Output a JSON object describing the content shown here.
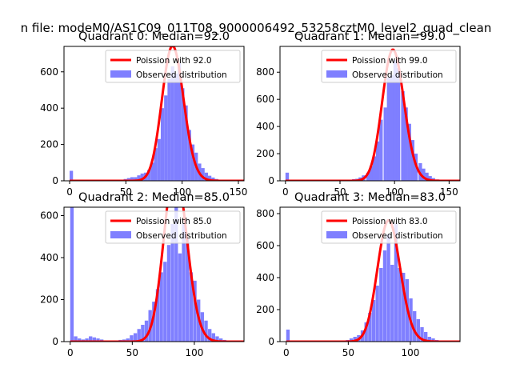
{
  "figure": {
    "suptitle": "n file: modeM0/AS1C09_011T08_9000006492_53258cztM0_level2_quad_clean"
  },
  "colors": {
    "hist": "#7f7fff",
    "curve": "#ff0000"
  },
  "chart_data": [
    {
      "type": "histogram",
      "title": "Quadrant 0: Median=92.0",
      "median": 92.0,
      "bin_width": 3,
      "legend": {
        "placement": "top-right",
        "entries": [
          "Poission with 92.0",
          "Observed distribution"
        ]
      },
      "xlim": [
        -5,
        155
      ],
      "ylim": [
        0,
        740
      ],
      "xticks": [
        0,
        50,
        100,
        150
      ],
      "yticks": [
        0,
        200,
        400,
        600
      ],
      "bars": [
        [
          0,
          55
        ],
        [
          3,
          5
        ],
        [
          6,
          2
        ],
        [
          42,
          5
        ],
        [
          48,
          10
        ],
        [
          51,
          15
        ],
        [
          54,
          20
        ],
        [
          57,
          20
        ],
        [
          60,
          30
        ],
        [
          63,
          40
        ],
        [
          66,
          45
        ],
        [
          69,
          60
        ],
        [
          72,
          100
        ],
        [
          75,
          180
        ],
        [
          78,
          230
        ],
        [
          81,
          400
        ],
        [
          84,
          470
        ],
        [
          87,
          560
        ],
        [
          90,
          630
        ],
        [
          93,
          590
        ],
        [
          96,
          650
        ],
        [
          99,
          510
        ],
        [
          102,
          415
        ],
        [
          105,
          280
        ],
        [
          108,
          200
        ],
        [
          111,
          155
        ],
        [
          114,
          95
        ],
        [
          117,
          70
        ],
        [
          120,
          45
        ],
        [
          123,
          28
        ],
        [
          126,
          18
        ],
        [
          129,
          10
        ],
        [
          132,
          5
        ],
        [
          135,
          3
        ],
        [
          138,
          2
        ]
      ]
    },
    {
      "type": "histogram",
      "title": "Quadrant 1: Median=99.0",
      "median": 99.0,
      "bin_width": 3.2,
      "legend": {
        "placement": "top-right",
        "entries": [
          "Poission with 99.0",
          "Observed distribution"
        ]
      },
      "xlim": [
        -5,
        160
      ],
      "ylim": [
        0,
        990
      ],
      "xticks": [
        0,
        50,
        100,
        150
      ],
      "yticks": [
        0,
        200,
        400,
        600,
        800
      ],
      "bars": [
        [
          0,
          60
        ],
        [
          3,
          5
        ],
        [
          51,
          5
        ],
        [
          57,
          8
        ],
        [
          61,
          12
        ],
        [
          64,
          15
        ],
        [
          67,
          25
        ],
        [
          70,
          40
        ],
        [
          74,
          60
        ],
        [
          77,
          110
        ],
        [
          80,
          180
        ],
        [
          83,
          290
        ],
        [
          86,
          450
        ],
        [
          90,
          540
        ],
        [
          93,
          760
        ],
        [
          96,
          780
        ],
        [
          99,
          890
        ],
        [
          102,
          830
        ],
        [
          106,
          660
        ],
        [
          109,
          540
        ],
        [
          112,
          420
        ],
        [
          115,
          300
        ],
        [
          118,
          200
        ],
        [
          122,
          130
        ],
        [
          125,
          90
        ],
        [
          128,
          60
        ],
        [
          131,
          35
        ],
        [
          134,
          20
        ],
        [
          138,
          10
        ],
        [
          141,
          5
        ],
        [
          144,
          3
        ]
      ]
    },
    {
      "type": "histogram",
      "title": "Quadrant 2: Median=85.0",
      "median": 85.0,
      "bin_width": 2.8,
      "legend": {
        "placement": "top-right",
        "entries": [
          "Poission with 85.0",
          "Observed distribution"
        ]
      },
      "xlim": [
        -5,
        140
      ],
      "ylim": [
        0,
        640
      ],
      "xticks": [
        0,
        50,
        100
      ],
      "yticks": [
        0,
        200,
        400,
        600
      ],
      "bars": [
        [
          0,
          640
        ],
        [
          3,
          25
        ],
        [
          6,
          15
        ],
        [
          9,
          10
        ],
        [
          12,
          15
        ],
        [
          15,
          25
        ],
        [
          18,
          20
        ],
        [
          21,
          15
        ],
        [
          24,
          10
        ],
        [
          27,
          5
        ],
        [
          33,
          5
        ],
        [
          39,
          8
        ],
        [
          42,
          10
        ],
        [
          45,
          15
        ],
        [
          48,
          30
        ],
        [
          51,
          40
        ],
        [
          54,
          60
        ],
        [
          57,
          80
        ],
        [
          60,
          100
        ],
        [
          63,
          150
        ],
        [
          66,
          190
        ],
        [
          69,
          250
        ],
        [
          72,
          330
        ],
        [
          75,
          380
        ],
        [
          78,
          460
        ],
        [
          81,
          560
        ],
        [
          84,
          640
        ],
        [
          87,
          420
        ],
        [
          90,
          560
        ],
        [
          93,
          490
        ],
        [
          96,
          330
        ],
        [
          99,
          290
        ],
        [
          102,
          200
        ],
        [
          105,
          140
        ],
        [
          108,
          100
        ],
        [
          111,
          60
        ],
        [
          114,
          40
        ],
        [
          117,
          25
        ],
        [
          120,
          15
        ],
        [
          123,
          8
        ],
        [
          126,
          3
        ]
      ]
    },
    {
      "type": "histogram",
      "title": "Quadrant 3: Median=83.0",
      "median": 83.0,
      "bin_width": 2.8,
      "legend": {
        "placement": "top-right",
        "entries": [
          "Poission with 83.0",
          "Observed distribution"
        ]
      },
      "xlim": [
        -5,
        140
      ],
      "ylim": [
        0,
        840
      ],
      "xticks": [
        0,
        50,
        100
      ],
      "yticks": [
        0,
        200,
        400,
        600,
        800
      ],
      "bars": [
        [
          0,
          75
        ],
        [
          3,
          5
        ],
        [
          42,
          5
        ],
        [
          48,
          10
        ],
        [
          51,
          20
        ],
        [
          54,
          30
        ],
        [
          57,
          40
        ],
        [
          60,
          70
        ],
        [
          63,
          120
        ],
        [
          66,
          180
        ],
        [
          69,
          260
        ],
        [
          72,
          350
        ],
        [
          75,
          460
        ],
        [
          78,
          570
        ],
        [
          81,
          670
        ],
        [
          84,
          480
        ],
        [
          87,
          740
        ],
        [
          90,
          460
        ],
        [
          93,
          430
        ],
        [
          96,
          390
        ],
        [
          99,
          270
        ],
        [
          102,
          190
        ],
        [
          105,
          140
        ],
        [
          108,
          90
        ],
        [
          111,
          60
        ],
        [
          114,
          30
        ],
        [
          117,
          20
        ],
        [
          120,
          10
        ],
        [
          123,
          5
        ],
        [
          126,
          3
        ]
      ]
    }
  ]
}
